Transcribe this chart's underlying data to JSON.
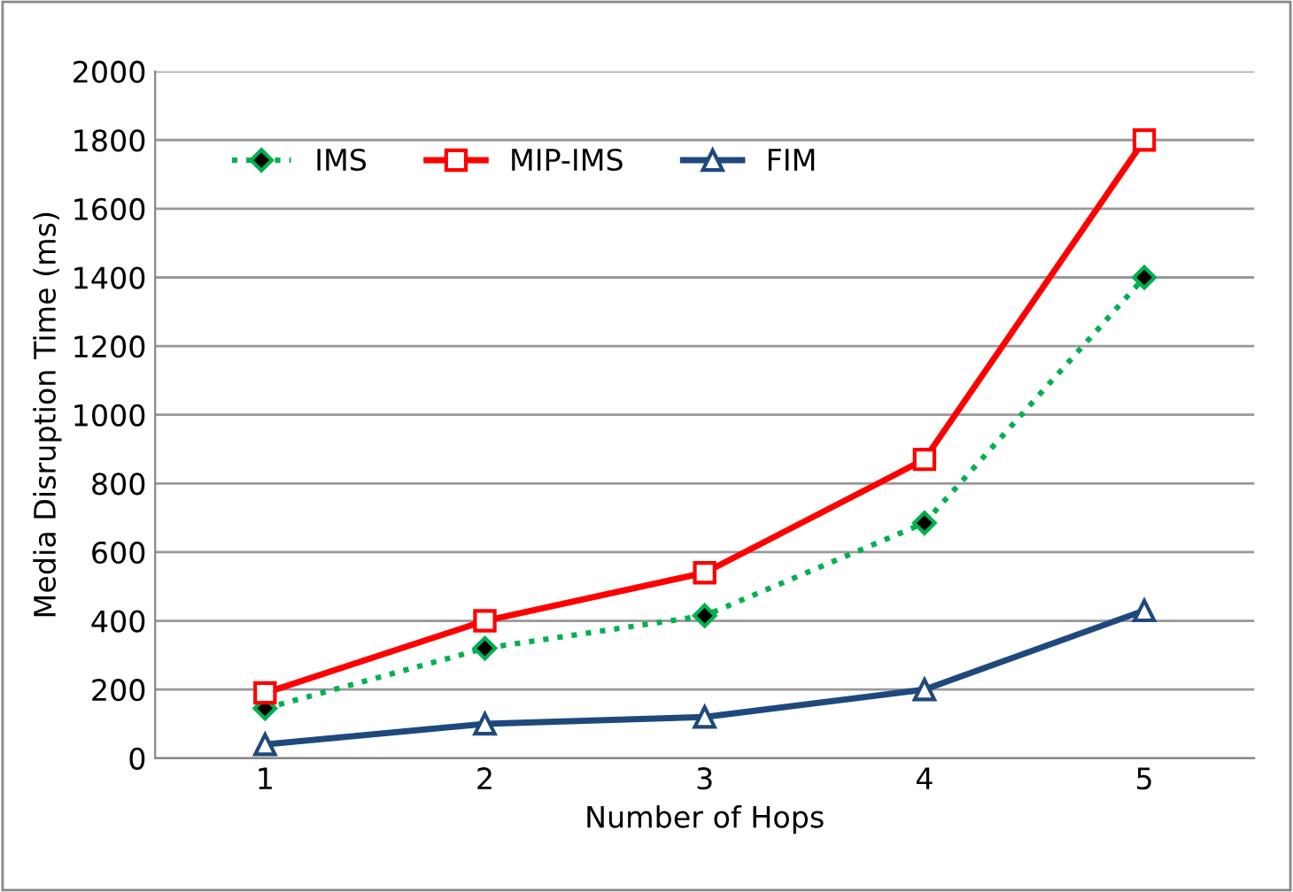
{
  "chart_data": {
    "type": "line",
    "xlabel": "Number of Hops",
    "ylabel": "Media Disruption Time (ms)",
    "categories": [
      "1",
      "2",
      "3",
      "4",
      "5"
    ],
    "series": [
      {
        "name": "IMS",
        "color": "#00b050",
        "marker": "diamond",
        "line_style": "dotted",
        "values": [
          145,
          320,
          415,
          685,
          1400
        ]
      },
      {
        "name": "MIP-IMS",
        "color": "#ff0000",
        "marker": "square",
        "line_style": "solid",
        "values": [
          190,
          400,
          540,
          870,
          1800
        ]
      },
      {
        "name": "FIM",
        "color": "#1f497d",
        "marker": "triangle",
        "line_style": "solid",
        "values": [
          40,
          100,
          120,
          200,
          430
        ]
      }
    ],
    "ylim": [
      0,
      2000
    ],
    "yticks": [
      0,
      200,
      400,
      600,
      800,
      1000,
      1200,
      1400,
      1600,
      1800,
      2000
    ],
    "grid": "y",
    "legend": "top left"
  }
}
